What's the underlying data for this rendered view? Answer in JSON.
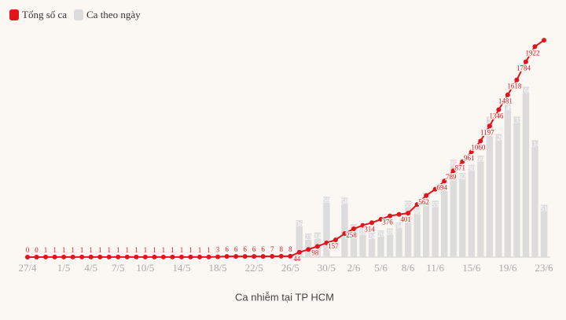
{
  "chart_data": {
    "type": "bar-line",
    "legend": [
      "Tổng số ca",
      "Ca theo ngày"
    ],
    "xlabel": "Ca nhiễm tại TP HCM",
    "categories": [
      "27/4",
      null,
      null,
      null,
      "1/5",
      null,
      null,
      "4/5",
      null,
      null,
      "7/5",
      null,
      null,
      "10/5",
      null,
      null,
      null,
      "14/5",
      null,
      null,
      null,
      "18/5",
      null,
      null,
      null,
      "22/5",
      null,
      null,
      null,
      "26/5",
      null,
      null,
      null,
      "30/5",
      null,
      null,
      "2/6",
      null,
      null,
      "5/6",
      null,
      null,
      "8/6",
      null,
      null,
      "11/6",
      null,
      null,
      null,
      "15/6",
      null,
      null,
      null,
      "19/6",
      null,
      null,
      null,
      "23/6"
    ],
    "series": [
      {
        "name": "Tổng số ca",
        "type": "line",
        "color": "#e1141c",
        "values": [
          0,
          0,
          1,
          1,
          1,
          1,
          1,
          1,
          1,
          1,
          1,
          1,
          1,
          1,
          1,
          1,
          1,
          1,
          1,
          1,
          1,
          3,
          6,
          6,
          6,
          6,
          6,
          7,
          8,
          8,
          44,
          70,
          98,
          130,
          157,
          215,
          258,
          290,
          314,
          345,
          376,
          390,
          401,
          480,
          562,
          620,
          694,
          789,
          871,
          961,
          1060,
          1197,
          1346,
          1481,
          1618,
          1784,
          1922,
          1980
        ],
        "value_labels": [
          "0",
          "0",
          "1",
          "1",
          "1",
          "1",
          "1",
          "1",
          "1",
          "1",
          "1",
          "1",
          "1",
          "1",
          "1",
          "1",
          "1",
          "1",
          "1",
          "1",
          "1",
          "3",
          "6",
          "6",
          "6",
          "6",
          "6",
          "7",
          "8",
          "8",
          "44",
          null,
          "98",
          null,
          "157",
          null,
          "258",
          null,
          "314",
          null,
          "376",
          null,
          "401",
          null,
          "562",
          null,
          "694",
          "789",
          "871",
          "961",
          "1060",
          "1197",
          "1346",
          "1481",
          "1618",
          "1784",
          "1922",
          null
        ]
      },
      {
        "name": "Ca theo ngày",
        "type": "bar",
        "color": "#dcdcdc",
        "axis": "y2",
        "values": [
          null,
          null,
          null,
          null,
          null,
          null,
          null,
          null,
          null,
          null,
          null,
          null,
          null,
          null,
          null,
          null,
          null,
          null,
          null,
          null,
          null,
          null,
          null,
          null,
          null,
          null,
          null,
          null,
          null,
          null,
          36,
          23,
          24,
          59,
          null,
          58,
          32,
          28,
          24,
          26,
          28,
          34,
          55,
          48,
          63,
          55,
          74,
          95,
          82,
          90,
          99,
          137,
          120,
          149,
          137,
          166,
          114,
          51
        ]
      }
    ],
    "ylim": [
      0,
      2060
    ],
    "y2lim": [
      0,
      220
    ]
  }
}
